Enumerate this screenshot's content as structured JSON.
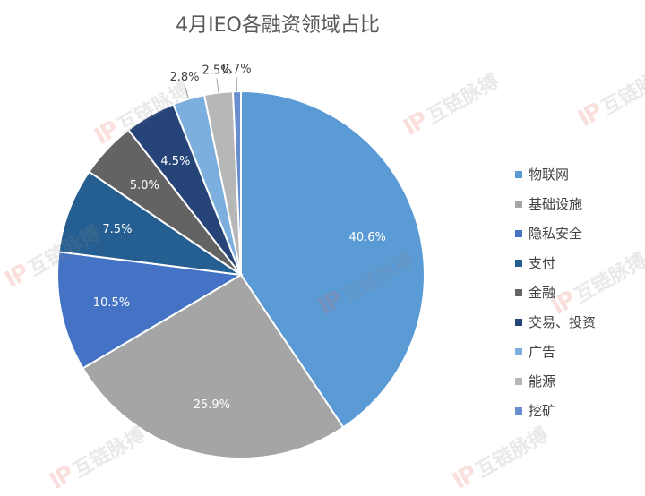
{
  "chart_data": {
    "type": "pie",
    "title": "4月IEO各融资领域占比",
    "categories": [
      "物联网",
      "基础设施",
      "隐私安全",
      "支付",
      "金融",
      "交易、投资",
      "广告",
      "能源",
      "挖矿"
    ],
    "values": [
      40.6,
      25.9,
      10.5,
      7.5,
      5.0,
      4.5,
      2.8,
      2.5,
      0.7
    ],
    "data_labels": [
      "40.6%",
      "25.9%",
      "10.5%",
      "7.5%",
      "5.0%",
      "4.5%",
      "2.8%",
      "2.5%",
      "0.7%"
    ],
    "colors": [
      "#5b9bd5",
      "#a5a5a5",
      "#4472c4",
      "#255e91",
      "#636363",
      "#264478",
      "#7cafdd",
      "#b7b7b7",
      "#698ed0"
    ],
    "label_colors": [
      "#ffffff",
      "#ffffff",
      "#ffffff",
      "#ffffff",
      "#ffffff",
      "#ffffff",
      "#404040",
      "#404040",
      "#404040"
    ],
    "legend_position": "right",
    "start_angle": "top, clockwise"
  },
  "watermark": {
    "logo": "IP",
    "text": "互链脉搏"
  }
}
